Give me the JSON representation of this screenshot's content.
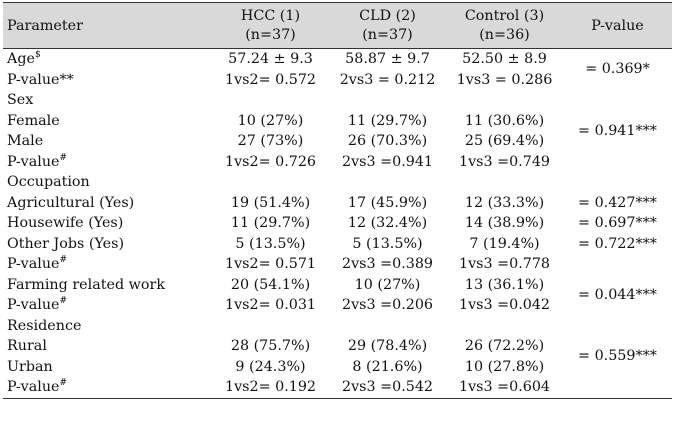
{
  "headers": {
    "parameter": "Parameter",
    "group1_line1": "HCC (1)",
    "group1_line2": "(n=37)",
    "group2_line1": "CLD (2)",
    "group2_line2": "(n=37)",
    "group3_line1": "Control (3)",
    "group3_line2": "(n=36)",
    "pvalue": "P-value"
  },
  "rows": {
    "age": {
      "label": "Age",
      "mark": "$",
      "hcc": "57.24 ± 9.3",
      "cld": "58.87 ± 9.7",
      "control": "52.50 ± 8.9",
      "p": "= 0.369*"
    },
    "age_p": {
      "label": "P-value**",
      "hcc": "1vs2= 0.572",
      "cld": "2vs3 = 0.212",
      "control": "1vs3 = 0.286"
    },
    "sex": {
      "label": "Sex"
    },
    "female": {
      "label": "Female",
      "hcc": "10 (27%)",
      "cld": "11 (29.7%)",
      "control": "11 (30.6%)",
      "p": "= 0.941***"
    },
    "male": {
      "label": "Male",
      "hcc": "27 (73%)",
      "cld": "26 (70.3%)",
      "control": "25 (69.4%)"
    },
    "sex_p": {
      "label": "P-value",
      "mark": "#",
      "hcc": "1vs2= 0.726",
      "cld": "2vs3 =0.941",
      "control": "1vs3 =0.749"
    },
    "occupation": {
      "label": "Occupation"
    },
    "agri": {
      "label": "Agricultural (Yes)",
      "hcc": "19 (51.4%)",
      "cld": "17 (45.9%)",
      "control": "12 (33.3%)",
      "p": "= 0.427***"
    },
    "housewife": {
      "label": "Housewife (Yes)",
      "hcc": "11 (29.7%)",
      "cld": "12 (32.4%)",
      "control": "14 (38.9%)",
      "p": "= 0.697***"
    },
    "other": {
      "label": "Other Jobs (Yes)",
      "hcc": "5 (13.5%)",
      "cld": "5 (13.5%)",
      "control": "7 (19.4%)",
      "p": "= 0.722***"
    },
    "occ_p": {
      "label": "P-value",
      "mark": "#",
      "hcc": "1vs2= 0.571",
      "cld": "2vs3 =0.389",
      "control": "1vs3 =0.778"
    },
    "farming": {
      "label": "Farming related work",
      "hcc": "20 (54.1%)",
      "cld": "10 (27%)",
      "control": "13 (36.1%)",
      "p": "= 0.044***"
    },
    "farming_p": {
      "label": "P-value",
      "mark": "#",
      "hcc": "1vs2= 0.031",
      "cld": "2vs3 =0.206",
      "control": "1vs3 =0.042"
    },
    "residence": {
      "label": "Residence"
    },
    "rural": {
      "label": "Rural",
      "hcc": "28 (75.7%)",
      "cld": "29 (78.4%)",
      "control": "26 (72.2%)",
      "p": "= 0.559***"
    },
    "urban": {
      "label": "Urban",
      "hcc": "9 (24.3%)",
      "cld": "8 (21.6%)",
      "control": "10 (27.8%)"
    },
    "res_p": {
      "label": "P-value",
      "mark": "#",
      "hcc": "1vs2= 0.192",
      "cld": "2vs3 =0.542",
      "control": "1vs3 =0.604"
    }
  }
}
